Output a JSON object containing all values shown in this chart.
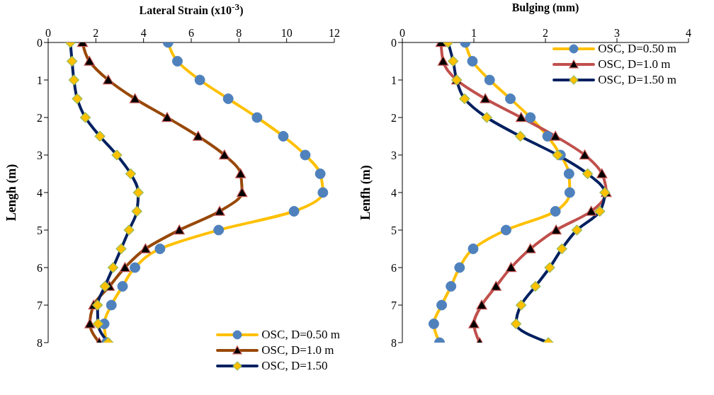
{
  "chart_data": [
    {
      "type": "line",
      "xlabel": "Lateral Strain (x10$^{-3}$)",
      "ylabel": "Lengh (m)",
      "xlim": [
        0,
        12
      ],
      "xticks": [
        0,
        2,
        4,
        6,
        8,
        10,
        12
      ],
      "ylim": [
        8,
        0
      ],
      "yticks": [
        0,
        1,
        2,
        3,
        4,
        5,
        6,
        7,
        8
      ],
      "grid": false,
      "legend": "bottom right",
      "series": [
        {
          "name": "OSC, D=0.50 m",
          "color": "#ffc000",
          "marker": "circle",
          "x": [
            5.03,
            5.42,
            6.36,
            7.55,
            8.76,
            9.86,
            10.78,
            11.41,
            11.52,
            10.31,
            7.15,
            4.69,
            3.64,
            3.12,
            2.65,
            2.35,
            2.45
          ],
          "values": [
            0,
            0.5,
            1,
            1.5,
            2,
            2.5,
            3,
            3.5,
            4,
            4.5,
            5,
            5.5,
            6,
            6.5,
            7,
            7.5,
            8
          ]
        },
        {
          "name": "OSC, D=1.0 m",
          "color": "#984807",
          "marker": "triangle",
          "x": [
            1.44,
            1.73,
            2.52,
            3.64,
            4.99,
            6.29,
            7.39,
            8.07,
            8.13,
            7.19,
            5.5,
            4.08,
            3.22,
            2.57,
            1.91,
            1.75,
            2.14
          ],
          "values": [
            0,
            0.5,
            1,
            1.5,
            2,
            2.5,
            3,
            3.5,
            4,
            4.5,
            5,
            5.5,
            6,
            6.5,
            7,
            7.5,
            8
          ]
        },
        {
          "name": "OSC, D=1.50",
          "color": "#002060",
          "marker": "diamond",
          "x": [
            0.93,
            1.0,
            1.08,
            1.22,
            1.56,
            2.17,
            2.88,
            3.46,
            3.78,
            3.72,
            3.39,
            3.06,
            2.72,
            2.38,
            2.07,
            2.09,
            2.52
          ],
          "values": [
            0,
            0.5,
            1,
            1.5,
            2,
            2.5,
            3,
            3.5,
            4,
            4.5,
            5,
            5.5,
            6,
            6.5,
            7,
            7.5,
            8
          ]
        }
      ]
    },
    {
      "type": "line",
      "xlabel": "Bulging (mm)",
      "ylabel": "Lenfh (m)",
      "xlim": [
        0,
        4
      ],
      "xticks": [
        0,
        1,
        2,
        3,
        4
      ],
      "ylim": [
        8,
        0
      ],
      "yticks": [
        0,
        1,
        2,
        3,
        4,
        5,
        6,
        7,
        8
      ],
      "grid": false,
      "legend": "top right",
      "series": [
        {
          "name": "OSC, D=0.50 m",
          "color": "#ffc000",
          "marker": "circle",
          "x": [
            0.88,
            0.98,
            1.22,
            1.51,
            1.79,
            2.03,
            2.21,
            2.33,
            2.34,
            2.14,
            1.45,
            0.99,
            0.8,
            0.68,
            0.55,
            0.44,
            0.52
          ],
          "values": [
            0,
            0.5,
            1,
            1.5,
            2,
            2.5,
            3,
            3.5,
            4,
            4.5,
            5,
            5.5,
            6,
            6.5,
            7,
            7.5,
            8
          ]
        },
        {
          "name": "OSC, D=1.0 m",
          "color": "#c0504d",
          "marker": "triangle",
          "x": [
            0.54,
            0.57,
            0.76,
            1.16,
            1.66,
            2.14,
            2.55,
            2.79,
            2.85,
            2.64,
            2.15,
            1.79,
            1.52,
            1.31,
            1.11,
            1.0,
            1.08
          ],
          "values": [
            0,
            0.5,
            1,
            1.5,
            2,
            2.5,
            3,
            3.5,
            4,
            4.5,
            5,
            5.5,
            6,
            6.5,
            7,
            7.5,
            8
          ]
        },
        {
          "name": "OSC, D=1.50 m",
          "color": "#002060",
          "marker": "diamond",
          "x": [
            0.64,
            0.71,
            0.76,
            0.87,
            1.18,
            1.65,
            2.17,
            2.59,
            2.83,
            2.76,
            2.44,
            2.23,
            2.06,
            1.86,
            1.66,
            1.59,
            2.04
          ],
          "values": [
            0,
            0.5,
            1,
            1.5,
            2,
            2.5,
            3,
            3.5,
            4,
            4.5,
            5,
            5.5,
            6,
            6.5,
            7,
            7.5,
            8
          ]
        }
      ]
    }
  ]
}
